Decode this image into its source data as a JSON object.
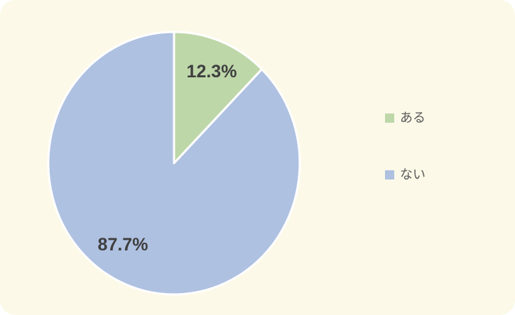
{
  "chart_data": {
    "type": "pie",
    "title": "",
    "labels": [
      "ある",
      "ない"
    ],
    "values": [
      12.3,
      87.7
    ],
    "value_labels": [
      "12.3%",
      "87.7%"
    ],
    "colors": [
      "#bed7a9",
      "#afc1e1"
    ],
    "separator_color": "#ffffff",
    "background_color": "#fcf9e8",
    "slice_label_color": "#3f3f3f",
    "legend_label_color": "#595959",
    "legend_position": "right",
    "start_angle_deg": 0,
    "direction": "clockwise"
  },
  "legend": {
    "items": [
      {
        "label": "ある",
        "color": "#bed7a9"
      },
      {
        "label": "ない",
        "color": "#afc1e1"
      }
    ]
  }
}
